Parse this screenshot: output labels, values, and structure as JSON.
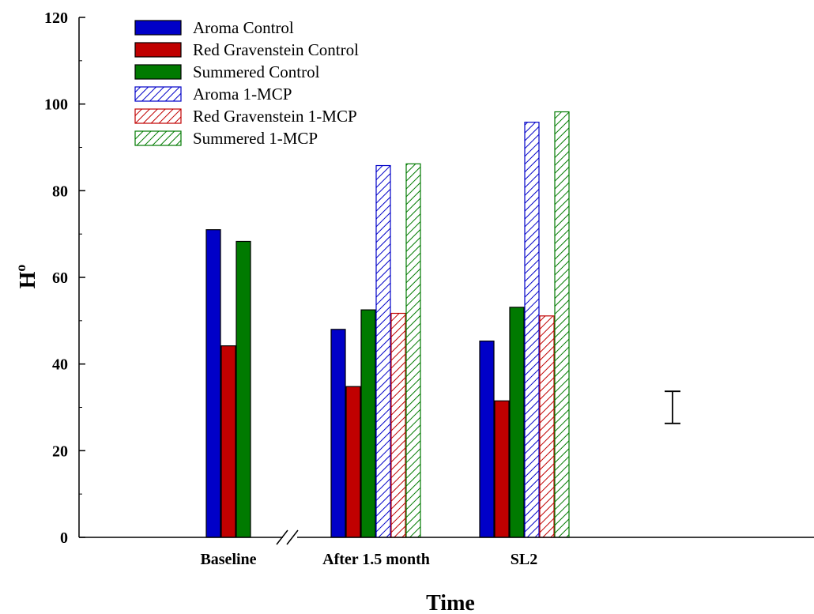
{
  "chart_data": {
    "type": "bar",
    "xlabel": "Time",
    "ylabel": "H",
    "ylabel_superscript": "o",
    "ylim": [
      0,
      120
    ],
    "yticks": [
      "0",
      "20",
      "40",
      "60",
      "80",
      "100",
      "120"
    ],
    "axis_break": "between Baseline and After 1.5 month",
    "legend_position": "top-left",
    "grid": false,
    "categories": [
      "Baseline",
      "After 1.5 month",
      "SL2"
    ],
    "series": [
      {
        "name": "Aroma Control",
        "color": "#0000c8",
        "pattern": "solid",
        "values": [
          71,
          48,
          45.3
        ]
      },
      {
        "name": "Red Gravenstein Control",
        "color": "#c00000",
        "pattern": "solid",
        "values": [
          44.2,
          34.8,
          31.5
        ]
      },
      {
        "name": "Summered Control",
        "color": "#007a00",
        "pattern": "solid",
        "values": [
          68.3,
          52.5,
          53.1
        ]
      },
      {
        "name": "Aroma 1-MCP",
        "color": "#0000c8",
        "pattern": "hatched",
        "values": [
          null,
          85.8,
          95.8
        ]
      },
      {
        "name": "Red Gravenstein 1-MCP",
        "color": "#c00000",
        "pattern": "hatched",
        "values": [
          null,
          51.7,
          51.1
        ]
      },
      {
        "name": "Summered 1-MCP",
        "color": "#007a00",
        "pattern": "hatched",
        "values": [
          null,
          86.2,
          98.2
        ]
      }
    ],
    "lsd_error_bar": {
      "low": 26.3,
      "high": 33.7
    }
  }
}
